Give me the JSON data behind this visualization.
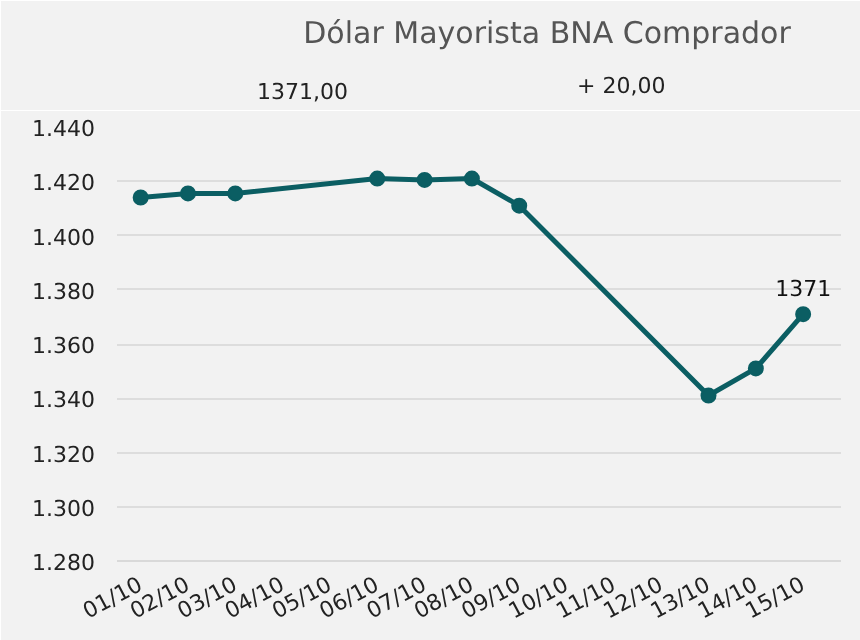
{
  "chart_data": {
    "type": "line",
    "title": "Dólar Mayorista BNA Comprador",
    "annotations": [
      "1371,00",
      "+ 20,00"
    ],
    "categories": [
      "01/10",
      "02/10",
      "03/10",
      "04/10",
      "05/10",
      "06/10",
      "07/10",
      "08/10",
      "09/10",
      "10/10",
      "11/10",
      "12/10",
      "13/10",
      "14/10",
      "15/10"
    ],
    "series": [
      {
        "color": "#0b5e63",
        "values": [
          1414,
          1415.5,
          1415.5,
          null,
          null,
          1421,
          1420.5,
          1421,
          1411,
          null,
          null,
          null,
          1341,
          1351,
          1371
        ],
        "value_labels": [
          null,
          null,
          null,
          null,
          null,
          null,
          null,
          null,
          null,
          null,
          null,
          null,
          null,
          null,
          "1371"
        ]
      }
    ],
    "ylim": [
      1280,
      1440
    ],
    "yticks": [
      {
        "value": 1280,
        "label": "1.280"
      },
      {
        "value": 1300,
        "label": "1.300"
      },
      {
        "value": 1320,
        "label": "1.320"
      },
      {
        "value": 1340,
        "label": "1.340"
      },
      {
        "value": 1360,
        "label": "1.360"
      },
      {
        "value": 1380,
        "label": "1.380"
      },
      {
        "value": 1400,
        "label": "1.400"
      },
      {
        "value": 1420,
        "label": "1.420"
      },
      {
        "value": 1440,
        "label": "1.440"
      }
    ],
    "grid": "y",
    "marker": "circle",
    "line_style": "solid"
  }
}
